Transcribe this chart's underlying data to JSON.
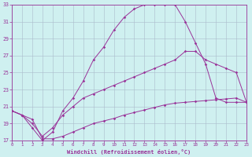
{
  "xlabel": "Windchill (Refroidissement éolien,°C)",
  "bg_color": "#cff0f0",
  "line_color": "#993399",
  "grid_color": "#aabbcc",
  "xlim": [
    0,
    23
  ],
  "ylim": [
    17,
    33
  ],
  "xticks": [
    0,
    1,
    2,
    3,
    4,
    5,
    6,
    7,
    8,
    9,
    10,
    11,
    12,
    13,
    14,
    15,
    16,
    17,
    18,
    19,
    20,
    21,
    22,
    23
  ],
  "yticks": [
    17,
    19,
    21,
    23,
    25,
    27,
    29,
    31,
    33
  ],
  "series1_x": [
    0,
    1,
    2,
    3,
    4,
    5,
    6,
    7,
    8,
    9,
    10,
    11,
    12,
    13,
    14,
    15,
    16,
    17,
    18,
    19,
    20,
    21,
    22,
    23
  ],
  "series1_y": [
    20.5,
    20.0,
    19.5,
    17.2,
    17.2,
    17.5,
    18.0,
    18.5,
    19.0,
    19.3,
    19.6,
    20.0,
    20.3,
    20.6,
    20.9,
    21.2,
    21.4,
    21.5,
    21.6,
    21.7,
    21.8,
    21.9,
    22.0,
    21.5
  ],
  "series2_x": [
    0,
    1,
    2,
    3,
    4,
    5,
    6,
    7,
    8,
    9,
    10,
    11,
    12,
    13,
    14,
    15,
    16,
    17,
    18,
    19,
    20,
    21,
    22,
    23
  ],
  "series2_y": [
    20.5,
    20.0,
    18.5,
    17.0,
    18.0,
    20.5,
    22.0,
    24.0,
    26.5,
    28.0,
    30.0,
    31.5,
    32.5,
    33.0,
    33.0,
    33.0,
    33.0,
    31.0,
    28.5,
    26.0,
    22.0,
    21.5,
    21.5,
    21.5
  ],
  "series3_x": [
    0,
    1,
    2,
    3,
    4,
    5,
    6,
    7,
    8,
    9,
    10,
    11,
    12,
    13,
    14,
    15,
    16,
    17,
    18,
    19,
    20,
    21,
    22,
    23
  ],
  "series3_y": [
    20.5,
    20.0,
    19.0,
    17.5,
    18.5,
    20.0,
    21.0,
    22.0,
    22.5,
    23.0,
    23.5,
    24.0,
    24.5,
    25.0,
    25.5,
    26.0,
    26.5,
    27.5,
    27.5,
    26.5,
    26.0,
    25.5,
    25.0,
    21.5
  ]
}
